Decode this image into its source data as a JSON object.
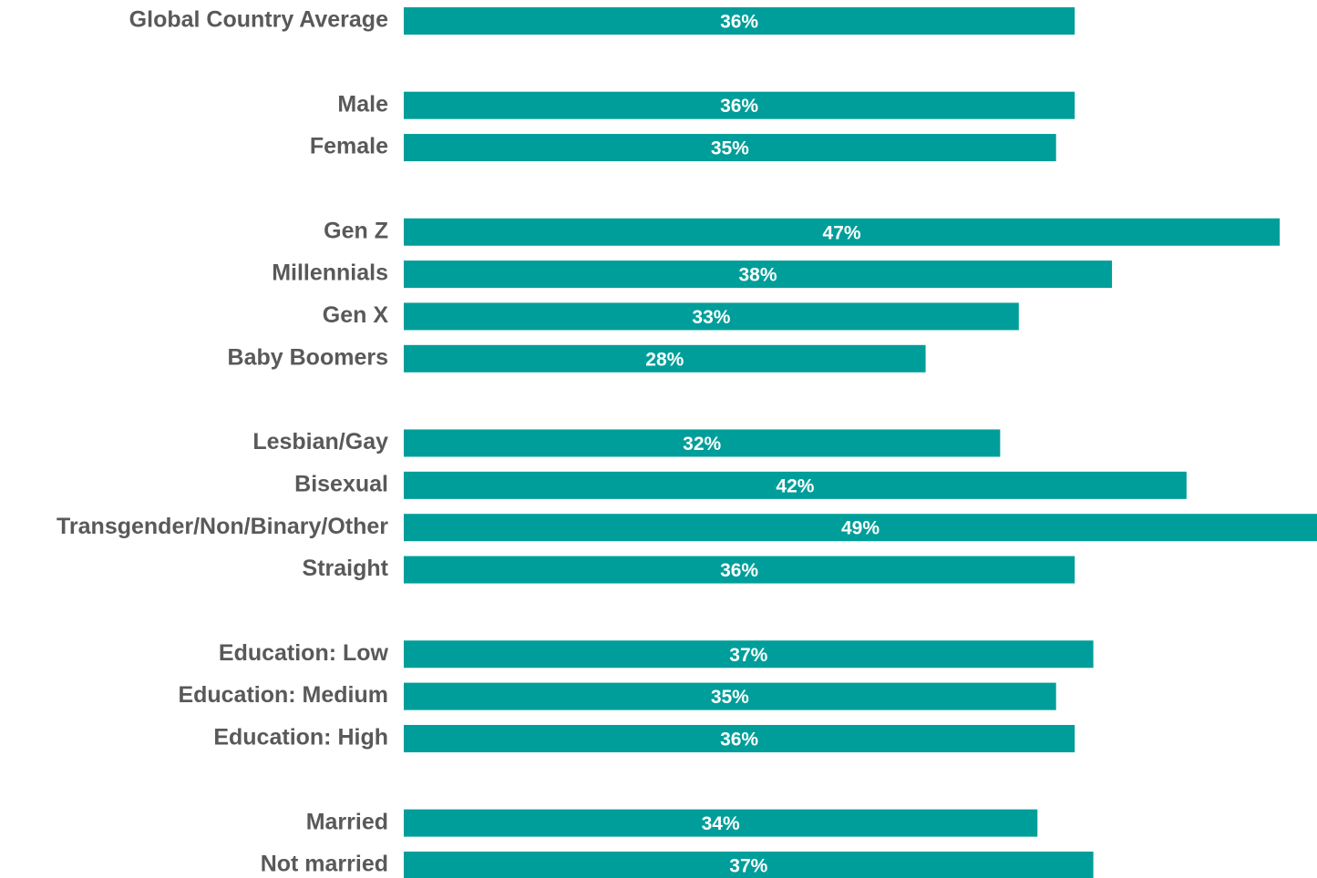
{
  "chart_data": {
    "type": "barh",
    "categories": [
      "Global Country Average",
      null,
      "Male",
      "Female",
      null,
      "Gen Z",
      "Millennials",
      "Gen X",
      "Baby Boomers",
      null,
      "Lesbian/Gay",
      "Bisexual",
      "Transgender/Non/Binary/Other",
      "Straight",
      null,
      "Education: Low",
      "Education: Medium",
      "Education: High",
      null,
      "Married",
      "Not married"
    ],
    "values": [
      36,
      null,
      36,
      35,
      null,
      47,
      38,
      33,
      28,
      null,
      32,
      42,
      49,
      36,
      null,
      37,
      35,
      36,
      null,
      34,
      37
    ],
    "value_labels": [
      "36%",
      null,
      "36%",
      "35%",
      null,
      "47%",
      "38%",
      "33%",
      "28%",
      null,
      "32%",
      "42%",
      "49%",
      "36%",
      null,
      "37%",
      "35%",
      "36%",
      null,
      "34%",
      "37%"
    ],
    "color": "#009e9a",
    "xlim": [
      0,
      49
    ]
  }
}
